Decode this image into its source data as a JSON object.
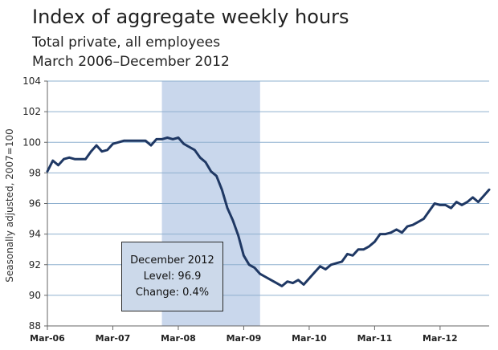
{
  "title": "Index of aggregate weekly hours",
  "subtitle_1": "Total private, all employees",
  "subtitle_2": "March 2006–December 2012",
  "annotation": {
    "line1": "December 2012",
    "line2": "Level: 96.9",
    "line3": "Change: 0.4%"
  },
  "colors": {
    "line": "#1f3864",
    "recession": "#c9d7ec",
    "grid": "#8fb0cf",
    "axis": "#666666"
  },
  "chart_data": {
    "type": "line",
    "title": "Index of aggregate weekly hours",
    "xlabel": "",
    "ylabel": "Seasonally adjusted, 2007=100",
    "ylim": [
      88,
      104
    ],
    "yticks": [
      "88",
      "90",
      "92",
      "94",
      "96",
      "98",
      "100",
      "102",
      "104"
    ],
    "xticks": [
      {
        "label": "Mar-06",
        "index": 0
      },
      {
        "label": "Mar-07",
        "index": 12
      },
      {
        "label": "Mar-08",
        "index": 24
      },
      {
        "label": "Mar-09",
        "index": 36
      },
      {
        "label": "Mar-10",
        "index": 48
      },
      {
        "label": "Mar-11",
        "index": 60
      },
      {
        "label": "Mar-12",
        "index": 72
      }
    ],
    "shaded_region": {
      "label": "recession",
      "start_index": 21,
      "end_index": 39
    },
    "series": [
      {
        "name": "Index of aggregate weekly hours",
        "values": [
          98.1,
          98.8,
          98.5,
          98.9,
          99.0,
          98.9,
          98.9,
          98.9,
          99.4,
          99.8,
          99.4,
          99.5,
          99.9,
          100.0,
          100.1,
          100.1,
          100.1,
          100.1,
          100.1,
          99.8,
          100.2,
          100.2,
          100.3,
          100.2,
          100.3,
          99.9,
          99.7,
          99.5,
          99.0,
          98.7,
          98.1,
          97.8,
          96.9,
          95.7,
          94.9,
          93.9,
          92.6,
          92.0,
          91.8,
          91.4,
          91.2,
          91.0,
          90.8,
          90.6,
          90.9,
          90.8,
          91.0,
          90.7,
          91.1,
          91.5,
          91.9,
          91.7,
          92.0,
          92.1,
          92.2,
          92.7,
          92.6,
          93.0,
          93.0,
          93.2,
          93.5,
          94.0,
          94.0,
          94.1,
          94.3,
          94.1,
          94.5,
          94.6,
          94.8,
          95.0,
          95.5,
          96.0,
          95.9,
          95.9,
          95.7,
          96.1,
          95.9,
          96.1,
          96.4,
          96.1,
          96.5,
          96.9
        ]
      }
    ]
  }
}
